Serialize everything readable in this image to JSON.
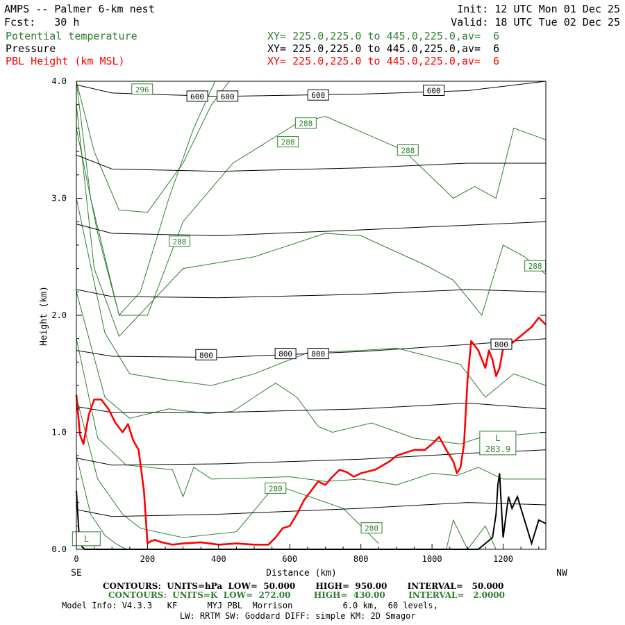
{
  "header": {
    "title_left": "AMPS -- Palmer 6-km nest",
    "fcst": "Fcst:   30 h",
    "init": "Init: 12 UTC Mon 01 Dec 25",
    "valid": "Valid: 18 UTC Tue 02 Dec 25",
    "fields": [
      {
        "name": "Potential temperature",
        "xy": "XY= 225.0,225.0 to 445.0,225.0,av=  6",
        "color": "#2e7d2e"
      },
      {
        "name": "Pressure",
        "xy": "XY= 225.0,225.0 to 445.0,225.0,av=  6",
        "color": "#000000"
      },
      {
        "name": "PBL Height (km MSL)",
        "xy": "XY= 225.0,225.0 to 445.0,225.0,av=  6",
        "color": "#ff0000"
      }
    ]
  },
  "footer": {
    "pressure_contours": "CONTOURS:  UNITS=hPa  LOW=  50.000       HIGH=  950.00       INTERVAL=   50.000",
    "theta_contours": "CONTOURS:  UNITS=K  LOW=  272.00        HIGH=  430.00        INTERVAL=   2.0000",
    "model_info": "Model Info: V4.3.3   KF      MYJ PBL  Morrison          6.0 km,  60 levels,",
    "physics": "LW: RRTM SW: Goddard DIFF: simple KM: 2D Smagor"
  },
  "chart_data": {
    "type": "line",
    "xlabel": "Distance (km)",
    "ylabel": "Height (km)",
    "xlim": [
      0,
      1320
    ],
    "ylim": [
      0.0,
      4.0
    ],
    "x_ticks": [
      0,
      200,
      400,
      600,
      800,
      1000,
      1200
    ],
    "y_ticks": [
      "0.0",
      "1.0",
      "2.0",
      "3.0",
      "4.0"
    ],
    "x_end_labels": {
      "left": "SE",
      "right": "NW"
    },
    "colors": {
      "theta": "#2e7d2e",
      "pressure": "#000000",
      "pbl": "#ff0000",
      "terrain": "#000000"
    },
    "contour_labels": [
      {
        "text": "296",
        "x": 185,
        "y": 3.93,
        "color": "green"
      },
      {
        "text": "600",
        "x": 340,
        "y": 3.87,
        "color": "black"
      },
      {
        "text": "600",
        "x": 425,
        "y": 3.87,
        "color": "black"
      },
      {
        "text": "600",
        "x": 680,
        "y": 3.88,
        "color": "black"
      },
      {
        "text": "600",
        "x": 1005,
        "y": 3.92,
        "color": "black"
      },
      {
        "text": "288",
        "x": 645,
        "y": 3.64,
        "color": "green"
      },
      {
        "text": "288",
        "x": 595,
        "y": 3.48,
        "color": "green"
      },
      {
        "text": "288",
        "x": 932,
        "y": 3.41,
        "color": "green"
      },
      {
        "text": "288",
        "x": 290,
        "y": 2.63,
        "color": "green"
      },
      {
        "text": "288",
        "x": 1290,
        "y": 2.42,
        "color": "green"
      },
      {
        "text": "800",
        "x": 365,
        "y": 1.66,
        "color": "black"
      },
      {
        "text": "800",
        "x": 588,
        "y": 1.67,
        "color": "black"
      },
      {
        "text": "800",
        "x": 680,
        "y": 1.67,
        "color": "black"
      },
      {
        "text": "800",
        "x": 1195,
        "y": 1.75,
        "color": "black"
      },
      {
        "text": "280",
        "x": 560,
        "y": 0.52,
        "color": "green"
      },
      {
        "text": "280",
        "x": 830,
        "y": 0.18,
        "color": "green"
      }
    ],
    "extrema_labels": [
      {
        "text": "L",
        "value": "283.9",
        "x": 1185,
        "y": 0.95
      },
      {
        "text": "L",
        "value": "",
        "x": 28,
        "y": 0.09
      }
    ],
    "pressure_series": [
      {
        "level": "600",
        "x": [
          0,
          100,
          400,
          800,
          1100,
          1320
        ],
        "y": [
          3.97,
          3.9,
          3.87,
          3.89,
          3.92,
          4.0
        ]
      },
      {
        "level": "650",
        "x": [
          0,
          100,
          400,
          800,
          1100,
          1320
        ],
        "y": [
          3.37,
          3.25,
          3.23,
          3.26,
          3.3,
          3.3
        ]
      },
      {
        "level": "700",
        "x": [
          0,
          100,
          400,
          800,
          1100,
          1320
        ],
        "y": [
          2.78,
          2.7,
          2.68,
          2.73,
          2.77,
          2.8
        ]
      },
      {
        "level": "750",
        "x": [
          0,
          100,
          400,
          800,
          1100,
          1320
        ],
        "y": [
          2.22,
          2.16,
          2.15,
          2.18,
          2.22,
          2.2
        ]
      },
      {
        "level": "800",
        "x": [
          0,
          100,
          400,
          800,
          1100,
          1320
        ],
        "y": [
          1.7,
          1.65,
          1.64,
          1.69,
          1.75,
          1.8
        ]
      },
      {
        "level": "850",
        "x": [
          0,
          100,
          400,
          800,
          1100,
          1320
        ],
        "y": [
          1.22,
          1.17,
          1.17,
          1.2,
          1.25,
          1.2
        ]
      },
      {
        "level": "900",
        "x": [
          0,
          100,
          400,
          800,
          1100,
          1320
        ],
        "y": [
          0.78,
          0.72,
          0.73,
          0.77,
          0.82,
          0.85
        ]
      },
      {
        "level": "950",
        "x": [
          0,
          100,
          400,
          800,
          1100,
          1320
        ],
        "y": [
          0.34,
          0.28,
          0.3,
          0.35,
          0.4,
          0.38
        ]
      }
    ],
    "theta_series": [
      {
        "x": [
          0,
          50,
          120,
          200,
          300,
          380,
          430
        ],
        "y": [
          4.0,
          3.4,
          2.9,
          2.88,
          3.3,
          3.8,
          4.0
        ]
      },
      {
        "x": [
          0,
          60,
          120,
          180,
          260,
          330,
          390
        ],
        "y": [
          3.6,
          2.7,
          2.0,
          2.2,
          3.0,
          3.6,
          4.0
        ]
      },
      {
        "x": [
          0,
          40,
          120,
          200,
          300,
          440,
          620,
          700,
          920,
          1060,
          1120,
          1180,
          1230,
          1320
        ],
        "y": [
          4.0,
          3.0,
          2.0,
          2.0,
          2.8,
          3.3,
          3.64,
          3.7,
          3.41,
          3.0,
          3.1,
          3.0,
          3.6,
          3.5
        ]
      },
      {
        "x": [
          0,
          50,
          120,
          300,
          500,
          700,
          800,
          980,
          1060,
          1140,
          1200,
          1260,
          1320
        ],
        "y": [
          3.8,
          2.4,
          1.82,
          2.4,
          2.5,
          2.7,
          2.68,
          2.43,
          2.3,
          2.0,
          2.6,
          2.5,
          2.35
        ]
      },
      {
        "x": [
          0,
          80,
          150,
          250,
          380,
          500,
          650,
          800,
          900,
          1080,
          1150,
          1230,
          1320
        ],
        "y": [
          3.0,
          1.85,
          1.5,
          1.45,
          1.4,
          1.5,
          1.68,
          1.7,
          1.72,
          1.58,
          1.3,
          1.5,
          1.4
        ]
      },
      {
        "x": [
          0,
          80,
          150,
          260,
          370,
          440,
          560,
          620,
          680,
          720,
          830,
          950,
          1080,
          1130,
          1320
        ],
        "y": [
          2.2,
          1.3,
          1.12,
          1.2,
          1.16,
          1.18,
          1.42,
          1.3,
          1.05,
          1.0,
          1.08,
          0.95,
          0.9,
          0.95,
          1.0
        ]
      },
      {
        "x": [
          0,
          60,
          140,
          270,
          300,
          330,
          380,
          600,
          700,
          800,
          900,
          1000,
          1070,
          1130,
          1200,
          1320
        ],
        "y": [
          1.8,
          0.95,
          0.72,
          0.68,
          0.45,
          0.7,
          0.6,
          0.62,
          0.58,
          0.6,
          0.55,
          0.65,
          0.63,
          0.7,
          0.6,
          0.6
        ]
      },
      {
        "x": [
          0,
          60,
          130,
          180,
          300,
          450,
          560,
          750,
          850
        ],
        "y": [
          1.3,
          0.6,
          0.3,
          0.18,
          0.1,
          0.15,
          0.55,
          0.35,
          0.05
        ]
      },
      {
        "x": [
          0,
          40,
          80,
          110,
          140
        ],
        "y": [
          0.8,
          0.3,
          0.12,
          0.05,
          0.0
        ]
      },
      {
        "x": [
          1040,
          1060,
          1100,
          1150,
          1180
        ],
        "y": [
          0.0,
          0.25,
          0.0,
          0.2,
          0.0
        ]
      }
    ],
    "pbl_height": {
      "x": [
        0,
        10,
        20,
        35,
        50,
        70,
        90,
        110,
        130,
        145,
        160,
        175,
        190,
        200,
        210,
        220,
        240,
        270,
        300,
        350,
        400,
        450,
        500,
        540,
        560,
        580,
        600,
        620,
        640,
        660,
        680,
        700,
        720,
        740,
        760,
        780,
        800,
        840,
        880,
        900,
        920,
        950,
        980,
        1000,
        1020,
        1040,
        1060,
        1070,
        1080,
        1090,
        1100,
        1110,
        1130,
        1150,
        1160,
        1170,
        1180,
        1190,
        1200,
        1220,
        1240,
        1260,
        1280,
        1300,
        1320
      ],
      "y": [
        1.32,
        0.98,
        0.9,
        1.15,
        1.28,
        1.28,
        1.2,
        1.08,
        1.0,
        1.07,
        0.93,
        0.85,
        0.5,
        0.05,
        0.07,
        0.08,
        0.06,
        0.04,
        0.05,
        0.06,
        0.04,
        0.05,
        0.04,
        0.04,
        0.1,
        0.18,
        0.2,
        0.3,
        0.42,
        0.5,
        0.58,
        0.55,
        0.62,
        0.68,
        0.66,
        0.62,
        0.65,
        0.68,
        0.75,
        0.8,
        0.82,
        0.85,
        0.85,
        0.9,
        0.96,
        0.85,
        0.75,
        0.65,
        0.7,
        0.9,
        1.45,
        1.78,
        1.7,
        1.55,
        1.7,
        1.62,
        1.48,
        1.55,
        1.72,
        1.75,
        1.8,
        1.85,
        1.9,
        1.98,
        1.92
      ]
    },
    "terrain_height": {
      "x": [
        0,
        8,
        16,
        24,
        32,
        40,
        1130,
        1150,
        1170,
        1180,
        1185,
        1190,
        1200,
        1215,
        1225,
        1240,
        1260,
        1280,
        1300,
        1320
      ],
      "y": [
        0.5,
        0.1,
        0.02,
        0.0,
        0.0,
        0.0,
        0.0,
        0.05,
        0.1,
        0.3,
        0.55,
        0.65,
        0.1,
        0.45,
        0.35,
        0.45,
        0.25,
        0.05,
        0.25,
        0.22
      ]
    }
  }
}
